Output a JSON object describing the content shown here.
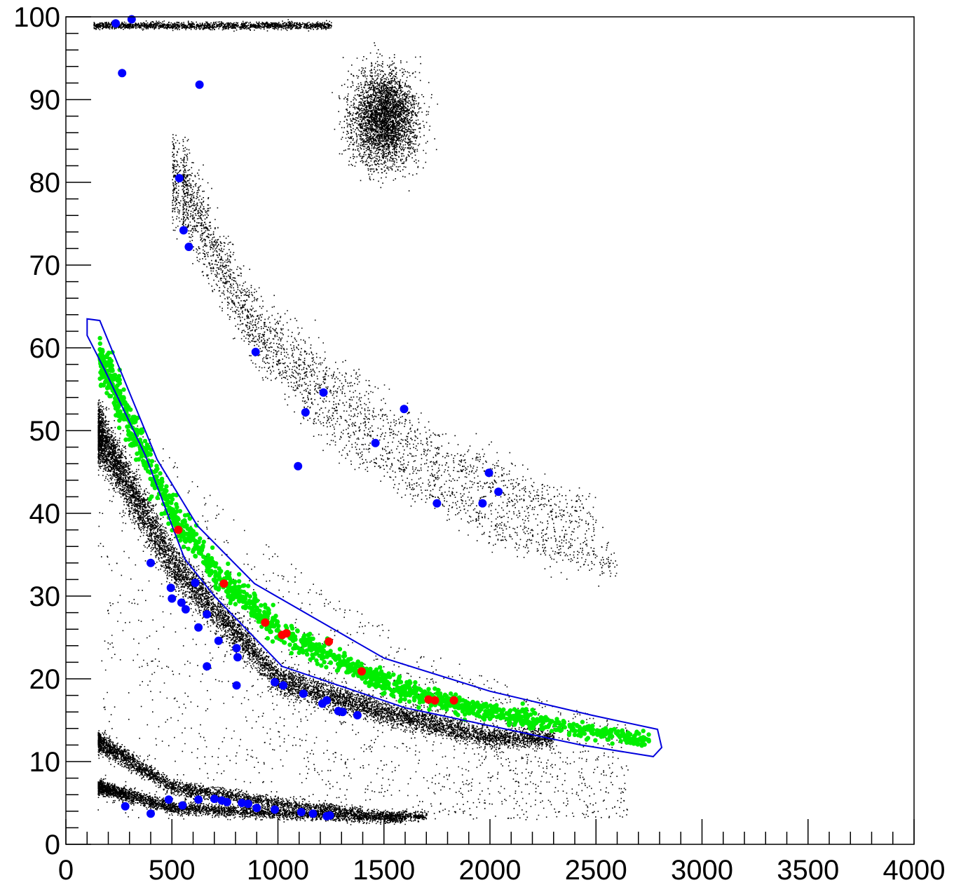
{
  "chart_data": {
    "type": "scatter",
    "title": "",
    "xlabel": "",
    "ylabel": "",
    "xlim": [
      0,
      4000
    ],
    "ylim": [
      0,
      100
    ],
    "grid": false,
    "x_ticks": [
      "0",
      "500",
      "1000",
      "1500",
      "2000",
      "2500",
      "3000",
      "3500",
      "4000"
    ],
    "y_ticks": [
      "0",
      "10",
      "20",
      "30",
      "40",
      "50",
      "60",
      "70",
      "80",
      "90",
      "100"
    ],
    "background_density": {
      "color": "#000000",
      "description_bands": [
        {
          "x": [
            150,
            2300
          ],
          "y_at_x": [
            [
              150,
              50
            ],
            [
              500,
              34
            ],
            [
              1000,
              20
            ],
            [
              1500,
              16
            ],
            [
              2000,
              13
            ]
          ],
          "density": "very dense"
        },
        {
          "x": [
            150,
            1700
          ],
          "y_at_x": [
            [
              150,
              12.5
            ],
            [
              500,
              7
            ],
            [
              1000,
              5
            ],
            [
              1500,
              3.5
            ]
          ],
          "density": "dense"
        },
        {
          "x": [
            150,
            1600
          ],
          "y_at_x": [
            [
              150,
              7
            ],
            [
              500,
              4.5
            ],
            [
              1000,
              3.8
            ],
            [
              1500,
              3.2
            ]
          ],
          "density": "dense"
        },
        {
          "x": [
            500,
            2600
          ],
          "y_at_x": [
            [
              530,
              80
            ],
            [
              800,
              66
            ],
            [
              1200,
              52
            ],
            [
              1600,
              45
            ],
            [
              2100,
              38
            ],
            [
              2600,
              34
            ]
          ],
          "density": "medium"
        },
        {
          "x": [
            550,
            2500
          ],
          "y_at_x": [
            [
              550,
              80
            ],
            [
              900,
              62
            ],
            [
              1300,
              55
            ],
            [
              1700,
              48
            ],
            [
              2200,
              42
            ],
            [
              2500,
              39
            ]
          ],
          "density": "medium"
        },
        {
          "cluster_center": [
            1500,
            88
          ],
          "spread": [
            110,
            4
          ],
          "density": "dense"
        },
        {
          "x": [
            130,
            1250
          ],
          "y_const": 99,
          "density": "medium"
        }
      ]
    },
    "series": [
      {
        "name": "",
        "color": "#00ee00",
        "points_band": {
          "x_range": [
            160,
            2750
          ],
          "y_at_x": [
            [
              160,
              59
            ],
            [
              300,
              51
            ],
            [
              500,
              40
            ],
            [
              700,
              33
            ],
            [
              1000,
              26
            ],
            [
              1300,
              22
            ],
            [
              1600,
              18.5
            ],
            [
              2000,
              16
            ],
            [
              2400,
              14
            ],
            [
              2750,
              12.5
            ]
          ]
        }
      },
      {
        "name": "",
        "color": "#ff0000",
        "points": [
          [
            530,
            38
          ],
          [
            745,
            31.5
          ],
          [
            940,
            26.8
          ],
          [
            1020,
            25.3
          ],
          [
            1040,
            25.5
          ],
          [
            1240,
            24.5
          ],
          [
            1395,
            20.9
          ],
          [
            1710,
            17.5
          ],
          [
            1740,
            17.4
          ],
          [
            1830,
            17.4
          ]
        ]
      },
      {
        "name": "",
        "color": "#0000ff",
        "points": [
          [
            235,
            99.2
          ],
          [
            310,
            99.7
          ],
          [
            265,
            93.2
          ],
          [
            630,
            91.8
          ],
          [
            535,
            80.5
          ],
          [
            555,
            74.2
          ],
          [
            580,
            72.2
          ],
          [
            895,
            59.5
          ],
          [
            1215,
            54.6
          ],
          [
            1130,
            52.2
          ],
          [
            1595,
            52.6
          ],
          [
            1460,
            48.5
          ],
          [
            1095,
            45.7
          ],
          [
            1995,
            44.9
          ],
          [
            2040,
            42.6
          ],
          [
            1750,
            41.2
          ],
          [
            1965,
            41.2
          ],
          [
            400,
            34.0
          ],
          [
            495,
            31.0
          ],
          [
            610,
            31.6
          ],
          [
            500,
            29.7
          ],
          [
            545,
            29.2
          ],
          [
            565,
            28.4
          ],
          [
            665,
            27.8
          ],
          [
            625,
            26.2
          ],
          [
            720,
            24.6
          ],
          [
            805,
            23.7
          ],
          [
            810,
            22.6
          ],
          [
            665,
            21.5
          ],
          [
            805,
            19.2
          ],
          [
            985,
            19.6
          ],
          [
            1025,
            19.2
          ],
          [
            1120,
            18.2
          ],
          [
            1230,
            17.4
          ],
          [
            1210,
            17.0
          ],
          [
            1285,
            16.1
          ],
          [
            1305,
            16.0
          ],
          [
            1375,
            15.6
          ],
          [
            485,
            5.4
          ],
          [
            625,
            5.4
          ],
          [
            700,
            5.5
          ],
          [
            735,
            5.3
          ],
          [
            760,
            5.1
          ],
          [
            830,
            5.0
          ],
          [
            860,
            4.9
          ],
          [
            280,
            4.6
          ],
          [
            550,
            4.7
          ],
          [
            900,
            4.4
          ],
          [
            985,
            4.2
          ],
          [
            1110,
            3.9
          ],
          [
            1165,
            3.7
          ],
          [
            1230,
            3.4
          ],
          [
            1245,
            3.5
          ],
          [
            400,
            3.7
          ]
        ]
      }
    ],
    "cut_polygon": {
      "color": "#0000dd",
      "vertices": [
        [
          100,
          63.5
        ],
        [
          160,
          63.3
        ],
        [
          430,
          46.5
        ],
        [
          620,
          38.5
        ],
        [
          890,
          31.5
        ],
        [
          1500,
          22.5
        ],
        [
          2000,
          18.5
        ],
        [
          2480,
          15.6
        ],
        [
          2790,
          13.9
        ],
        [
          2810,
          11.7
        ],
        [
          2770,
          10.6
        ],
        [
          2430,
          12
        ],
        [
          1600,
          16.5
        ],
        [
          1020,
          21.5
        ],
        [
          700,
          30
        ],
        [
          560,
          34.5
        ],
        [
          375,
          47
        ],
        [
          180,
          57.5
        ],
        [
          100,
          61.5
        ]
      ]
    }
  }
}
